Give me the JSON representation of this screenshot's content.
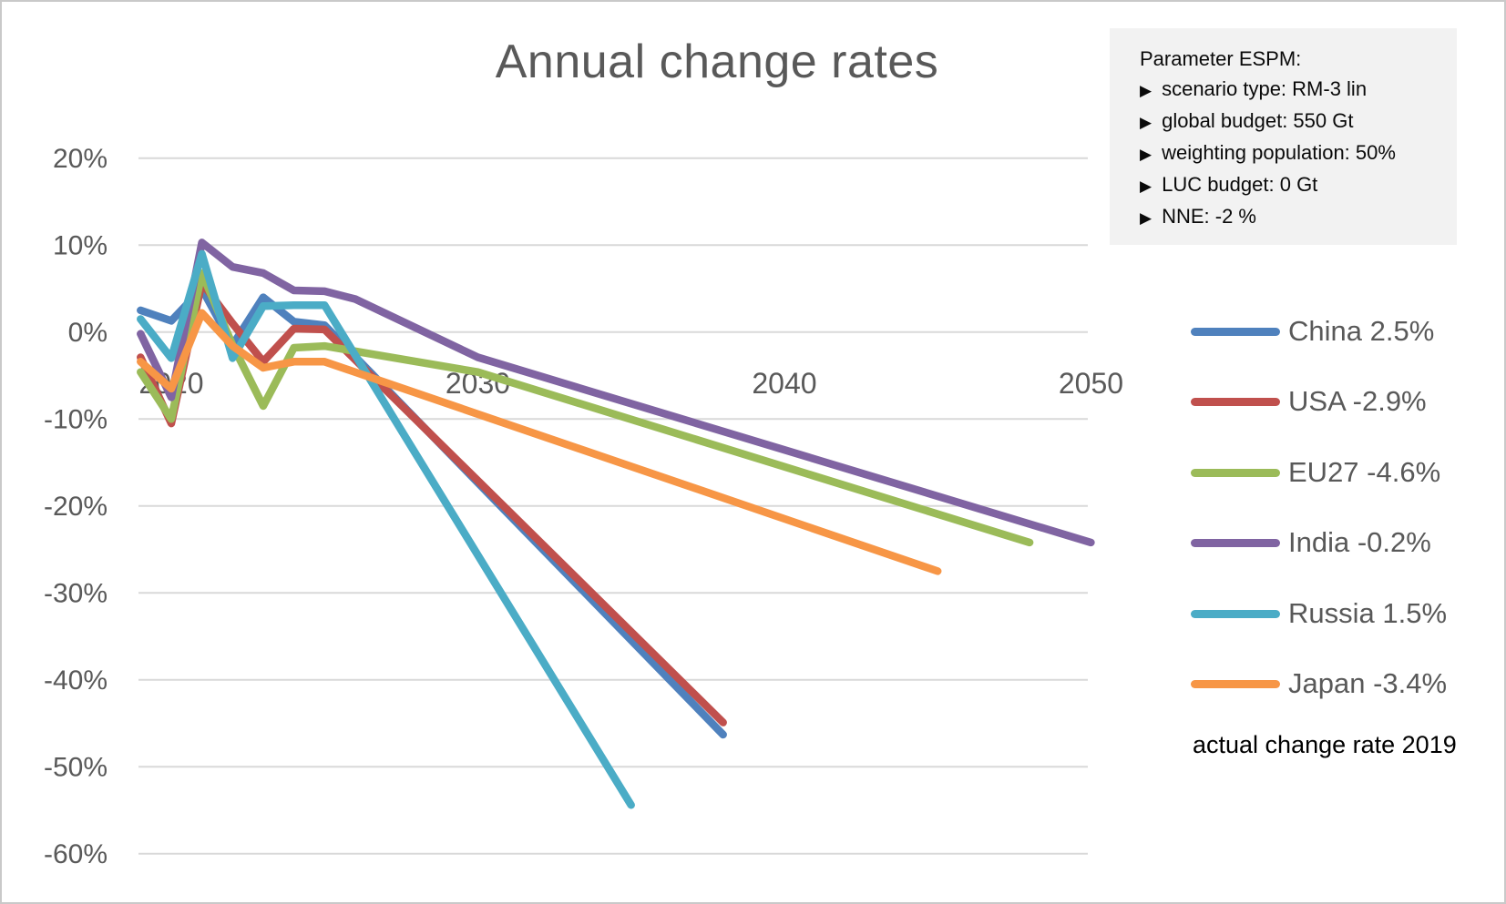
{
  "window": {
    "background": "#FFFFFF",
    "border_color": "#C9C9C9"
  },
  "title": "Annual change rates",
  "parameter_box": {
    "bullet_glyph": "▶",
    "title": "Parameter ESPM:",
    "items": [
      "scenario type: RM-3 lin",
      "global budget: 550 Gt",
      "weighting population: 50%",
      "LUC budget: 0 Gt",
      "NNE: -2 %"
    ]
  },
  "legend": {
    "items": [
      {
        "label": "China 2.5%",
        "color": "#4F81BD"
      },
      {
        "label": "USA -2.9%",
        "color": "#C0504D"
      },
      {
        "label": "EU27 -4.6%",
        "color": "#9BBB59"
      },
      {
        "label": "India -0.2%",
        "color": "#8064A2"
      },
      {
        "label": "Russia 1.5%",
        "color": "#4BACC6"
      },
      {
        "label": "Japan -3.4%",
        "color": "#F79646"
      }
    ],
    "footnote": "actual change rate 2019"
  },
  "chart_data": {
    "type": "line",
    "title": "Annual change rates",
    "xlabel": "",
    "ylabel": "",
    "y_unit": "%",
    "x_ticks": [
      2020,
      2030,
      2040,
      2050
    ],
    "y_ticks_percent": [
      20,
      10,
      0,
      -10,
      -20,
      -30,
      -40,
      -50,
      -60
    ],
    "xlim": [
      2019,
      2050
    ],
    "ylim_percent": [
      -60,
      20
    ],
    "grid": true,
    "gridline_color": "#D9D9D9",
    "axis_text_color": "#595959",
    "legend_position": "right",
    "series": [
      {
        "name": "China",
        "legend_label": "China 2.5%",
        "color": "#4F81BD",
        "actual_change_rate_2019_percent": 2.5,
        "points": [
          [
            2019,
            2.5
          ],
          [
            2020,
            1.3
          ],
          [
            2021,
            5.0
          ],
          [
            2022,
            -1.5
          ],
          [
            2023,
            4.0
          ],
          [
            2024,
            1.2
          ],
          [
            2025,
            0.8
          ],
          [
            2038,
            -46.3
          ]
        ]
      },
      {
        "name": "USA",
        "legend_label": "USA -2.9%",
        "color": "#C0504D",
        "actual_change_rate_2019_percent": -2.9,
        "points": [
          [
            2019,
            -2.9
          ],
          [
            2020,
            -10.5
          ],
          [
            2021,
            5.7
          ],
          [
            2022,
            1.0
          ],
          [
            2023,
            -3.4
          ],
          [
            2024,
            0.4
          ],
          [
            2025,
            0.3
          ],
          [
            2038,
            -44.9
          ]
        ]
      },
      {
        "name": "EU27",
        "legend_label": "EU27 -4.6%",
        "color": "#9BBB59",
        "actual_change_rate_2019_percent": -4.6,
        "points": [
          [
            2019,
            -4.6
          ],
          [
            2020,
            -10.0
          ],
          [
            2021,
            6.8
          ],
          [
            2022,
            -1.5
          ],
          [
            2023,
            -8.5
          ],
          [
            2024,
            -1.8
          ],
          [
            2025,
            -1.6
          ],
          [
            2030,
            -4.6
          ],
          [
            2048,
            -24.2
          ]
        ]
      },
      {
        "name": "India",
        "legend_label": "India -0.2%",
        "color": "#8064A2",
        "actual_change_rate_2019_percent": -0.2,
        "points": [
          [
            2019,
            -0.2
          ],
          [
            2020,
            -7.5
          ],
          [
            2021,
            10.3
          ],
          [
            2022,
            7.5
          ],
          [
            2023,
            6.8
          ],
          [
            2024,
            4.8
          ],
          [
            2025,
            4.7
          ],
          [
            2026,
            3.8
          ],
          [
            2030,
            -2.9
          ],
          [
            2050,
            -24.2
          ]
        ]
      },
      {
        "name": "Russia",
        "legend_label": "Russia 1.5%",
        "color": "#4BACC6",
        "actual_change_rate_2019_percent": 1.5,
        "points": [
          [
            2019,
            1.5
          ],
          [
            2020,
            -3.0
          ],
          [
            2021,
            9.0
          ],
          [
            2022,
            -3.0
          ],
          [
            2023,
            3.0
          ],
          [
            2024,
            3.1
          ],
          [
            2025,
            3.1
          ],
          [
            2035,
            -54.4
          ]
        ]
      },
      {
        "name": "Japan",
        "legend_label": "Japan -3.4%",
        "color": "#F79646",
        "actual_change_rate_2019_percent": -3.4,
        "points": [
          [
            2019,
            -3.4
          ],
          [
            2020,
            -6.5
          ],
          [
            2021,
            2.2
          ],
          [
            2022,
            -1.6
          ],
          [
            2023,
            -4.1
          ],
          [
            2024,
            -3.4
          ],
          [
            2025,
            -3.4
          ],
          [
            2045,
            -27.5
          ]
        ]
      }
    ]
  }
}
